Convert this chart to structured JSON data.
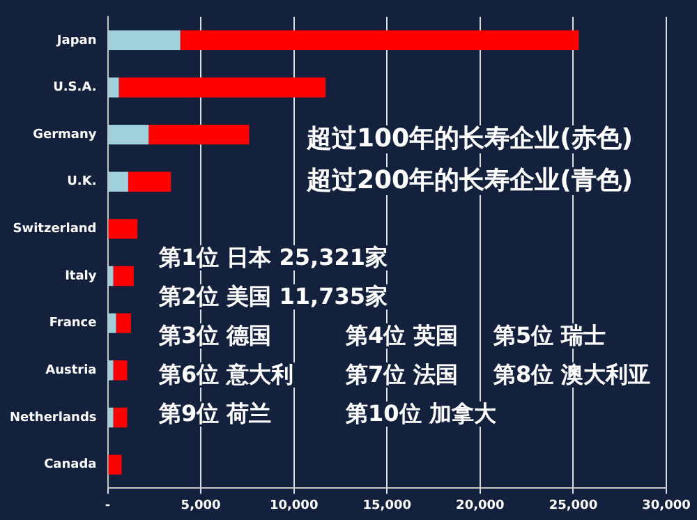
{
  "chart_data": {
    "type": "bar",
    "orientation": "horizontal",
    "stacked": true,
    "categories": [
      "Japan",
      "U.S.A.",
      "Germany",
      "U.K.",
      "Switzerland",
      "Italy",
      "France",
      "Austria",
      "Netherlands",
      "Canada"
    ],
    "series": [
      {
        "color": "#9fd0dc",
        "values": [
          3900,
          600,
          2200,
          1100,
          null,
          300,
          450,
          300,
          300,
          0
        ]
      },
      {
        "color": "#ff0000",
        "values": [
          21400,
          11100,
          5400,
          2300,
          1600,
          1100,
          800,
          750,
          750,
          750
        ]
      }
    ],
    "xlim": [
      0,
      30000
    ],
    "xticks": [
      {
        "value": 0,
        "label": "-"
      },
      {
        "value": 5000,
        "label": "5,000"
      },
      {
        "value": 10000,
        "label": "10,000"
      },
      {
        "value": 15000,
        "label": "15,000"
      },
      {
        "value": 20000,
        "label": "20,000"
      },
      {
        "value": 25000,
        "label": "25,000"
      },
      {
        "value": 30000,
        "label": "30,000"
      }
    ],
    "grid": "x",
    "annotations": [
      "超过100年的长寿企业(赤色)",
      "超过200年的长寿企业(青色)",
      "第1位 日本 25,321家",
      "第2位 美国 11,735家",
      "第3位 德国",
      "第4位 英国",
      "第5位 瑞士",
      "第6位 意大利",
      "第7位 法国",
      "第8位 澳大利亚",
      "第9位 荷兰",
      "第10位 加拿大"
    ]
  }
}
